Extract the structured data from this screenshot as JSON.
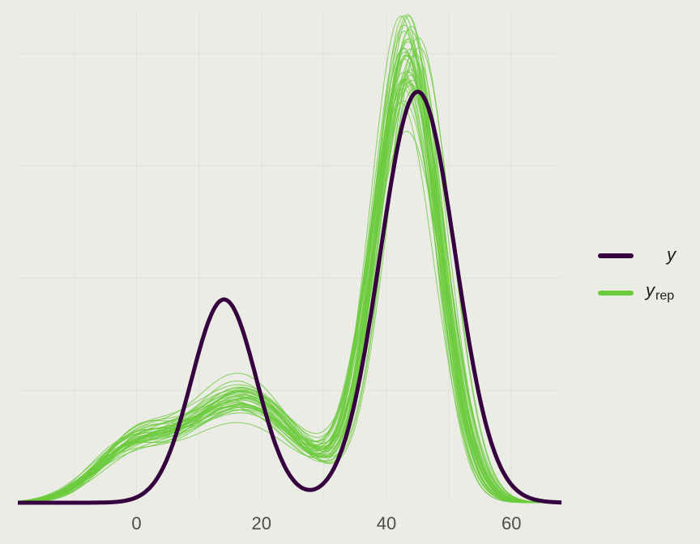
{
  "chart_data": {
    "type": "line",
    "title": "",
    "xlabel": "",
    "ylabel": "",
    "xlim": [
      -19,
      68
    ],
    "x_ticks": [
      0,
      20,
      40,
      60
    ],
    "x_tick_labels": [
      "0",
      "20",
      "40",
      "60"
    ],
    "grid": true,
    "legend_position": "right",
    "colors": {
      "y": "#35023f",
      "yrep": "#6bcb3c",
      "background": "#ecece6",
      "grid": "#e2e2dc"
    },
    "series": [
      {
        "name": "y",
        "legend_label": "y",
        "description": "observed data density",
        "mixture": [
          {
            "weight": 0.3,
            "mean": 14,
            "sd": 5.2
          },
          {
            "weight": 0.7,
            "mean": 45,
            "sd": 6.0
          }
        ]
      },
      {
        "name": "yrep",
        "legend_label": "y",
        "legend_subscript": "rep",
        "description": "replicated data densities",
        "draws": 40,
        "mixture": [
          {
            "weight": 0.08,
            "mean": -1,
            "sd": 6.0
          },
          {
            "weight": 0.27,
            "mean": 17,
            "sd": 9.0
          },
          {
            "weight": 0.65,
            "mean": 43.5,
            "sd": 5.2
          }
        ]
      }
    ]
  }
}
